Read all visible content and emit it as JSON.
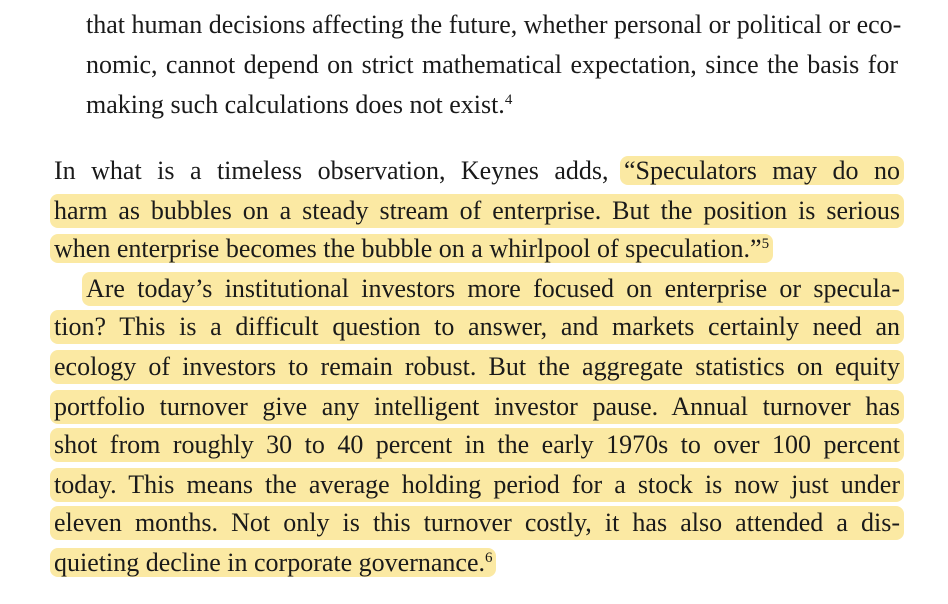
{
  "quote": {
    "lines": [
      "that human decisions affecting the future, whether personal or political or eco-",
      "nomic, cannot depend on strict mathematical expectation, since the basis for",
      "making such calculations does not exist."
    ],
    "footnote": "4"
  },
  "paragraph1": {
    "line1_plain": "In what is a timeless observation, Keynes adds, ",
    "line1_highlight": "“Speculators may do no",
    "line2": "harm as bubbles on a steady stream of enterprise. But the position is serious",
    "line3": "when enterprise becomes the bubble on a whirlpool of speculation.”",
    "footnote": "5"
  },
  "paragraph2": {
    "lines": [
      "Are today’s institutional investors more focused on enterprise or specula-",
      "tion? This is a difficult question to answer, and markets certainly need an",
      "ecology of investors to remain robust. But the aggregate statistics on equity",
      "portfolio turnover give any intelligent investor pause. Annual turnover has",
      "shot from roughly 30 to 40 percent in the early 1970s to over 100 percent",
      "today. This means the average holding period for a stock is now just under",
      "eleven months. Not only is this turnover costly, it has also attended a dis-",
      "quieting decline in corporate governance."
    ],
    "footnote": "6"
  },
  "colors": {
    "highlight": "#fbe9a3",
    "text": "#1a1a1a",
    "background": "#ffffff"
  }
}
